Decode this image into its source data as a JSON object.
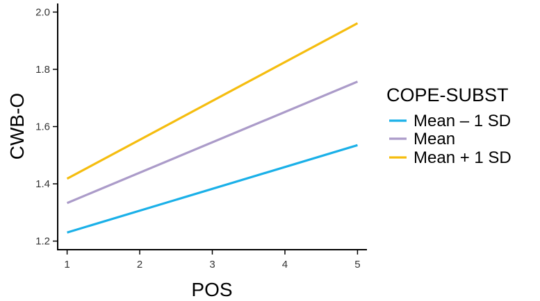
{
  "chart_data": {
    "type": "line",
    "title": "",
    "xlabel": "POS",
    "ylabel": "CWB-O",
    "x": [
      1,
      5
    ],
    "xlim": [
      0.87,
      5.13
    ],
    "ylim": [
      1.17,
      2.03
    ],
    "xticks": [
      1,
      2,
      3,
      4,
      5
    ],
    "xtick_labels": [
      "1",
      "2",
      "3",
      "4",
      "5"
    ],
    "yticks": [
      1.2,
      1.4,
      1.6,
      1.8,
      2.0
    ],
    "ytick_labels": [
      "1.2",
      "1.4",
      "1.6",
      "1.8",
      "2.0"
    ],
    "grid": false,
    "legend_position": "right",
    "legend_title": "COPE-SUBST",
    "series": [
      {
        "name": "Mean – 1 SD",
        "values": [
          1.23,
          1.535
        ],
        "color": "#1ab0e8"
      },
      {
        "name": "Mean",
        "values": [
          1.333,
          1.757
        ],
        "color": "#ab9bc9"
      },
      {
        "name": "Mean + 1 SD",
        "values": [
          1.418,
          1.961
        ],
        "color": "#f5bd0f"
      }
    ]
  }
}
